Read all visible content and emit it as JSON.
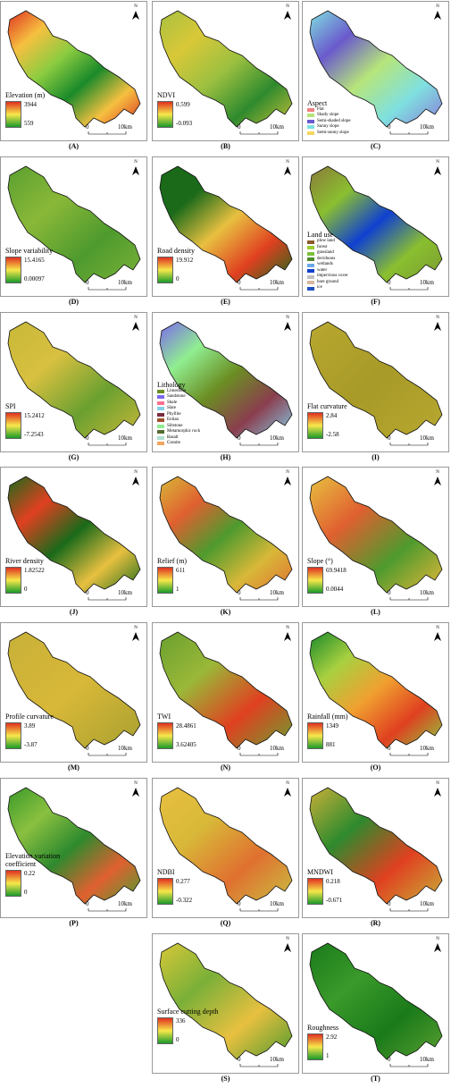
{
  "north": "N",
  "scale_bar": {
    "start": "0",
    "end": "10km"
  },
  "panels": [
    {
      "label": "(A)",
      "legend": {
        "title": "Elevation (m)",
        "max": "3944",
        "min": "559",
        "colors": [
          "#e03020",
          "#f7e84a",
          "#1a9a2a"
        ]
      },
      "fill": [
        "#e03020",
        "#f6c040",
        "#8ccc40",
        "#1a8a2a",
        "#f6c040",
        "#d83020"
      ]
    },
    {
      "label": "(B)",
      "legend": {
        "title": "NDVI",
        "max": "0.599",
        "min": "-0.093",
        "colors": [
          "#e03020",
          "#f7e84a",
          "#1a9a2a"
        ]
      },
      "fill": [
        "#a8c040",
        "#d8c838",
        "#9cc040",
        "#2e8a2e",
        "#c8c038"
      ]
    },
    {
      "label": "(C)",
      "legend": {
        "title": "Aspect",
        "classes": [
          {
            "name": "Flat",
            "color": "#f08080"
          },
          {
            "name": "Shady slope",
            "color": "#b6e57a"
          },
          {
            "name": "Semi-shaded slope",
            "color": "#6a5acd"
          },
          {
            "name": "Sunny slope",
            "color": "#7fe0e0"
          },
          {
            "name": "Semi-sunny slope",
            "color": "#f6d860"
          }
        ]
      },
      "fill": [
        "#7fe0e0",
        "#6a5acd",
        "#b6e57a",
        "#7fe0e0",
        "#8a7ad8"
      ]
    },
    {
      "label": "(D)",
      "legend": {
        "title": "Slope variability",
        "max": "15.4165",
        "min": "0.00097",
        "colors": [
          "#e03020",
          "#f7e84a",
          "#1a9a2a"
        ]
      },
      "fill": [
        "#5aa030",
        "#8ab838",
        "#4e9a2e",
        "#7ab238"
      ]
    },
    {
      "label": "(E)",
      "legend": {
        "title": "Road density",
        "max": "19.912",
        "min": "0",
        "colors": [
          "#e03020",
          "#f7e84a",
          "#1a9a2a"
        ]
      },
      "fill": [
        "#1a6a1a",
        "#1a6a1a",
        "#e8c040",
        "#e04020",
        "#1a6a1a"
      ]
    },
    {
      "label": "(F)",
      "legend": {
        "title": "Land use",
        "classes": [
          {
            "name": "plow land",
            "color": "#8b5a2b"
          },
          {
            "name": "forest",
            "color": "#9acd32"
          },
          {
            "name": "grassland",
            "color": "#7cbf3a"
          },
          {
            "name": "deciduous",
            "color": "#4e8a2a"
          },
          {
            "name": "wetlands",
            "color": "#6aa8e8"
          },
          {
            "name": "water",
            "color": "#1040d0"
          },
          {
            "name": "impervious cover",
            "color": "#c0c0c0"
          },
          {
            "name": "bare ground",
            "color": "#d8b8a0"
          },
          {
            "name": "ice",
            "color": "#2050c0"
          }
        ]
      },
      "fill": [
        "#8b7a3a",
        "#8abf30",
        "#1040d0",
        "#8abf30",
        "#7a9a30"
      ]
    },
    {
      "label": "(G)",
      "legend": {
        "title": "SPI",
        "max": "15.2412",
        "min": "-7.2543",
        "colors": [
          "#e03020",
          "#f7e84a",
          "#1a9a2a"
        ]
      },
      "fill": [
        "#c8b838",
        "#d8c040",
        "#6aa030",
        "#c8b838"
      ]
    },
    {
      "label": "(H)",
      "legend": {
        "title": "Lithology",
        "classes": [
          {
            "name": "Limestone",
            "color": "#6b8e23"
          },
          {
            "name": "Sandstone",
            "color": "#7b68ee"
          },
          {
            "name": "Shale",
            "color": "#ff6f91"
          },
          {
            "name": "Slate",
            "color": "#87ceeb"
          },
          {
            "name": "Phyllite",
            "color": "#7a2e3e"
          },
          {
            "name": "Eolian",
            "color": "#a0522d"
          },
          {
            "name": "Siltstone",
            "color": "#90ee90"
          },
          {
            "name": "Metamorphic rock",
            "color": "#556b2f"
          },
          {
            "name": "Basalt",
            "color": "#b0e0d0"
          },
          {
            "name": "Granite",
            "color": "#f4a460"
          }
        ]
      },
      "fill": [
        "#7b68ee",
        "#90ee90",
        "#6b8e23",
        "#8a3e4e",
        "#87ceeb"
      ]
    },
    {
      "label": "(I)",
      "legend": {
        "title": "Flat curvature",
        "max": "2.84",
        "min": "-2.58",
        "colors": [
          "#e03020",
          "#f7e84a",
          "#1a9a2a"
        ]
      },
      "fill": [
        "#b8a830",
        "#a89a28",
        "#b8a830"
      ]
    },
    {
      "label": "(J)",
      "legend": {
        "title": "River density",
        "max": "1.82522",
        "min": "0",
        "colors": [
          "#e03020",
          "#f7e84a",
          "#1a9a2a"
        ]
      },
      "fill": [
        "#1a6a1a",
        "#e04020",
        "#1a6a1a",
        "#e8c040",
        "#1a6a1a"
      ]
    },
    {
      "label": "(K)",
      "legend": {
        "title": "Relief (m)",
        "max": "611",
        "min": "1",
        "colors": [
          "#e03020",
          "#f7e84a",
          "#1a9a2a"
        ]
      },
      "fill": [
        "#d8b838",
        "#e06030",
        "#4e9a2e",
        "#d8b838",
        "#e07030"
      ]
    },
    {
      "label": "(L)",
      "legend": {
        "title": "Slope (°)",
        "max": "69.9418",
        "min": "0.0044",
        "colors": [
          "#e03020",
          "#f7e84a",
          "#1a9a2a"
        ]
      },
      "fill": [
        "#e8c040",
        "#e06030",
        "#4e9a2e",
        "#e8b838"
      ]
    },
    {
      "label": "(M)",
      "legend": {
        "title": "Profile curvature",
        "max": "3.89",
        "min": "-3.87",
        "colors": [
          "#e03020",
          "#f7e84a",
          "#1a9a2a"
        ]
      },
      "fill": [
        "#c8b038",
        "#d8b838",
        "#a8a030"
      ]
    },
    {
      "label": "(N)",
      "legend": {
        "title": "TWI",
        "max": "28.4861",
        "min": "3.62405",
        "colors": [
          "#e03020",
          "#f7e84a",
          "#1a9a2a"
        ]
      },
      "fill": [
        "#6aa030",
        "#9ab838",
        "#e04020",
        "#6aa030"
      ]
    },
    {
      "label": "(O)",
      "legend": {
        "title": "Rainfall (mm)",
        "max": "1349",
        "min": "881",
        "colors": [
          "#e03020",
          "#f7e84a",
          "#1a9a2a"
        ]
      },
      "fill": [
        "#1a8a2a",
        "#a8d040",
        "#f0a030",
        "#e04020",
        "#8acc40"
      ]
    },
    {
      "label": "(P)",
      "legend": {
        "title": "Elevation variation coefficient",
        "max": "0.22",
        "min": "0",
        "colors": [
          "#e03020",
          "#f7e84a",
          "#1a9a2a"
        ]
      },
      "fill": [
        "#3a9a2a",
        "#8ac040",
        "#2e8a2e",
        "#e06030",
        "#4aa030"
      ]
    },
    {
      "label": "(Q)",
      "legend": {
        "title": "NDBI",
        "max": "0.277",
        "min": "-0.322",
        "colors": [
          "#e03020",
          "#f7e84a",
          "#1a9a2a"
        ]
      },
      "fill": [
        "#e8c040",
        "#d8b838",
        "#e07030",
        "#c8c040"
      ]
    },
    {
      "label": "(R)",
      "legend": {
        "title": "MNDWI",
        "max": "0.218",
        "min": "-0.671",
        "colors": [
          "#e03020",
          "#f7e84a",
          "#1a9a2a"
        ]
      },
      "fill": [
        "#c8b038",
        "#2e8a2e",
        "#e04020",
        "#c8b038"
      ]
    },
    {
      "label": "(S)",
      "legend": {
        "title": "Surface cutting depth",
        "max": "336",
        "min": "0",
        "colors": [
          "#e03020",
          "#f7e84a",
          "#1a9a2a"
        ]
      },
      "fill": [
        "#d8c838",
        "#7ab038",
        "#e8c040",
        "#4e9a2e"
      ]
    },
    {
      "label": "(T)",
      "legend": {
        "title": "Roughness",
        "max": "2.92",
        "min": "1",
        "colors": [
          "#e03020",
          "#f7e84a",
          "#1a9a2a"
        ]
      },
      "fill": [
        "#1a7a1a",
        "#3a9a2a",
        "#1a7a1a",
        "#5aa030"
      ]
    }
  ]
}
